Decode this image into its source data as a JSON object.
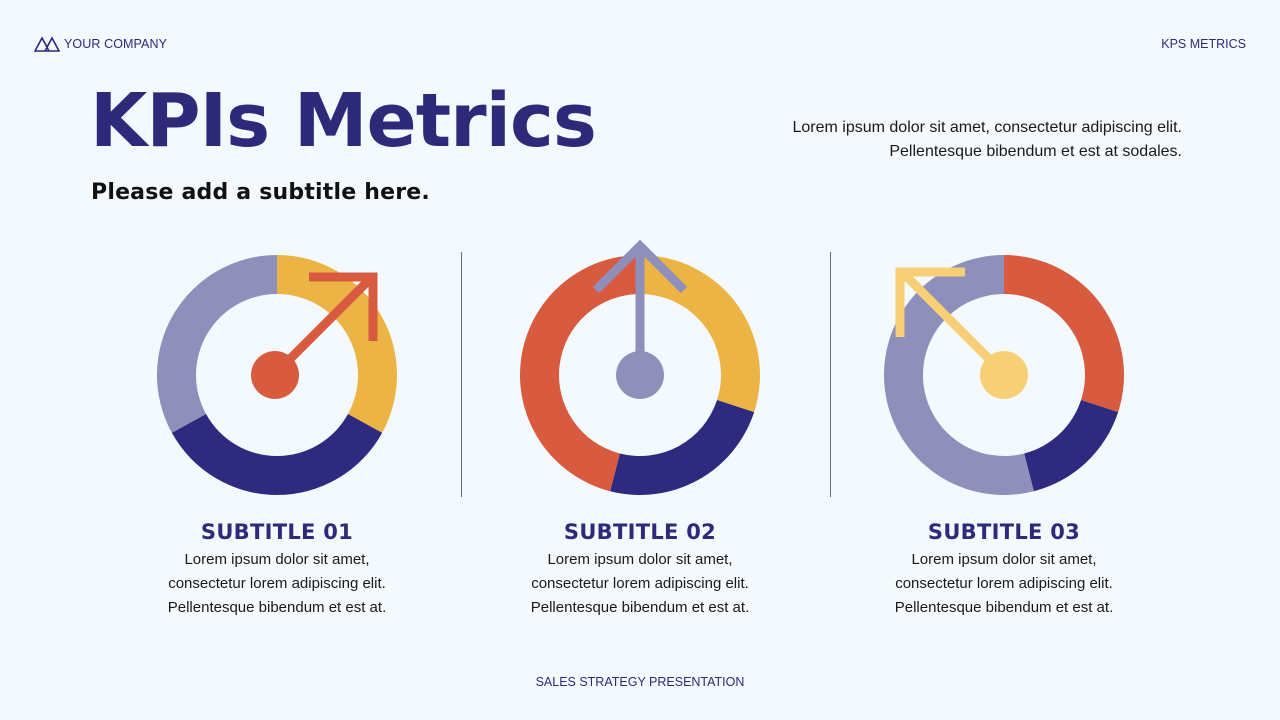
{
  "header": {
    "company": "YOUR COMPANY",
    "company_icon": "mountains-logo-icon",
    "section": "KPS METRICS"
  },
  "hero": {
    "title": "KPIs Metrics",
    "subtitle": "Please add a subtitle here.",
    "intro_lines": [
      "Lorem ipsum dolor sit amet, consectetur adipiscing elit.",
      "Pellentesque bibendum et est at sodales."
    ]
  },
  "colors": {
    "navy": "#2e2a7f",
    "lavender": "#8e8fba",
    "yellow": "#ecb444",
    "red": "#d85a3f",
    "light_yellow": "#f7cf74",
    "background": "#f3f9fc"
  },
  "kpis": [
    {
      "title": "SUBTITLE 01",
      "lines": [
        "Lorem ipsum dolor sit amet,",
        "consectetur lorem adipiscing elit.",
        "Pellentesque bibendum et est at."
      ],
      "arrow_icon": "arrow-up-right-icon",
      "arrow_color": "#d85a3f"
    },
    {
      "title": "SUBTITLE 02",
      "lines": [
        "Lorem ipsum dolor sit amet,",
        "consectetur lorem adipiscing elit.",
        "Pellentesque bibendum et est at."
      ],
      "arrow_icon": "arrow-up-icon",
      "arrow_color": "#8e8fba"
    },
    {
      "title": "SUBTITLE 03",
      "lines": [
        "Lorem ipsum dolor sit amet,",
        "consectetur lorem adipiscing elit.",
        "Pellentesque bibendum et est at."
      ],
      "arrow_icon": "arrow-up-left-icon",
      "arrow_color": "#f7cf74"
    }
  ],
  "chart_data": [
    {
      "type": "pie",
      "title": "SUBTITLE 01",
      "style": "donut",
      "categories": [
        "yellow",
        "navy",
        "lavender"
      ],
      "values": [
        33,
        34,
        33
      ],
      "colors": [
        "#ecb444",
        "#2e2a7f",
        "#8e8fba"
      ]
    },
    {
      "type": "pie",
      "title": "SUBTITLE 02",
      "style": "donut",
      "categories": [
        "yellow",
        "navy",
        "red"
      ],
      "values": [
        30,
        24,
        46
      ],
      "colors": [
        "#ecb444",
        "#2e2a7f",
        "#d85a3f"
      ]
    },
    {
      "type": "pie",
      "title": "SUBTITLE 03",
      "style": "donut",
      "categories": [
        "red",
        "navy",
        "lavender"
      ],
      "values": [
        30,
        16,
        54
      ],
      "colors": [
        "#d85a3f",
        "#2e2a7f",
        "#8e8fba"
      ]
    }
  ],
  "footer": {
    "text": "SALES STRATEGY PRESENTATION"
  }
}
